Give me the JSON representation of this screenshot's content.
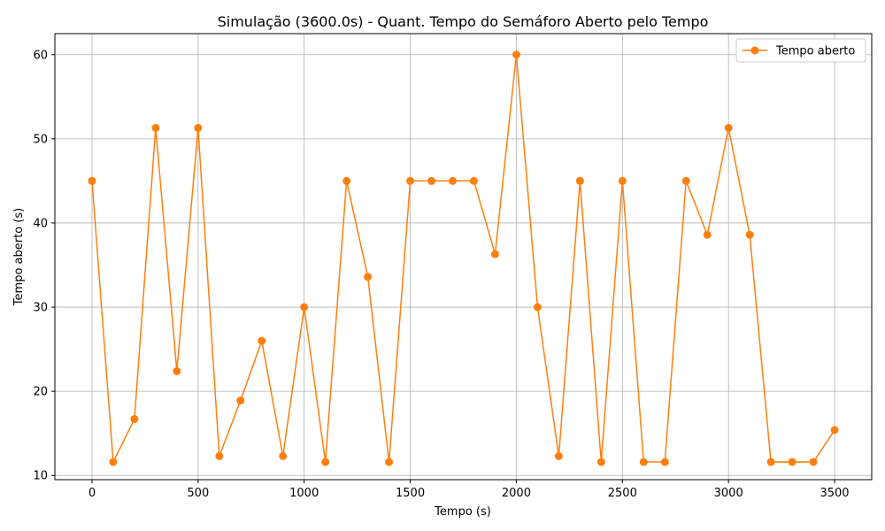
{
  "chart_data": {
    "type": "line",
    "title": "Simulação (3600.0s) - Quant. Tempo do Semáforo Aberto pelo Tempo",
    "xlabel": "Tempo (s)",
    "ylabel": "Tempo aberto (s)",
    "xlim": [
      -175,
      3675
    ],
    "ylim": [
      9.5,
      62.5
    ],
    "xticks": [
      0,
      500,
      1000,
      1500,
      2000,
      2500,
      3000,
      3500
    ],
    "yticks": [
      10,
      20,
      30,
      40,
      50,
      60
    ],
    "grid": true,
    "legend_position": "top-right",
    "series": [
      {
        "name": "Tempo aberto",
        "color": "#ff7f0e",
        "marker": "circle",
        "x": [
          0,
          100,
          200,
          300,
          400,
          500,
          600,
          700,
          800,
          900,
          1000,
          1100,
          1200,
          1300,
          1400,
          1500,
          1600,
          1700,
          1800,
          1900,
          2000,
          2100,
          2200,
          2300,
          2400,
          2500,
          2600,
          2700,
          2800,
          2900,
          3000,
          3100,
          3200,
          3300,
          3400,
          3500
        ],
        "y": [
          45.0,
          11.6,
          16.7,
          51.3,
          22.4,
          51.3,
          12.3,
          18.9,
          26.0,
          12.3,
          30.0,
          11.6,
          45.0,
          33.6,
          11.6,
          45.0,
          45.0,
          45.0,
          45.0,
          36.3,
          60.0,
          30.0,
          12.3,
          45.0,
          11.6,
          45.0,
          11.6,
          11.6,
          45.0,
          38.6,
          51.3,
          38.6,
          11.6,
          11.6,
          11.6,
          15.4
        ]
      }
    ]
  }
}
